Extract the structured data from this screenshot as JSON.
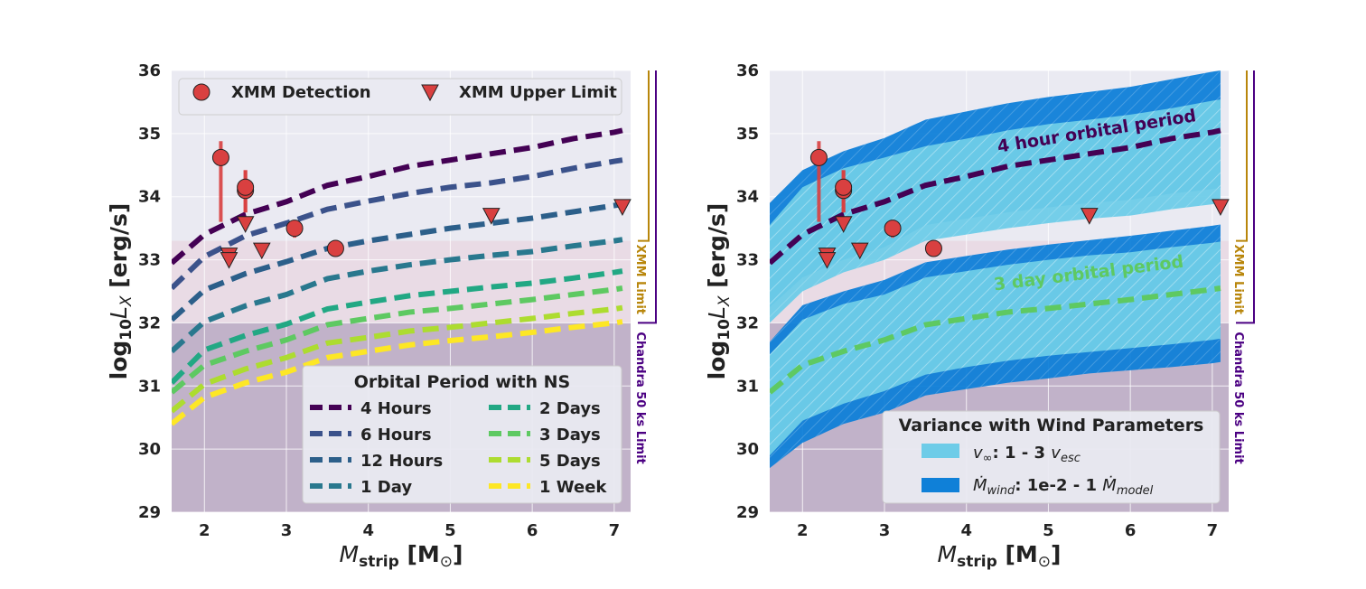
{
  "chart_data": [
    {
      "type": "line",
      "panel": "left",
      "xlabel": "M_strip [M_⊙]",
      "ylabel": "log10 L_X [erg/s]",
      "xlim": [
        1.6,
        7.2
      ],
      "ylim": [
        29,
        36
      ],
      "xticks": [
        2,
        3,
        4,
        5,
        6,
        7
      ],
      "yticks": [
        29,
        30,
        31,
        32,
        33,
        34,
        35,
        36
      ],
      "grid": true,
      "background": "#eaeaf2",
      "x": [
        1.6,
        2.0,
        2.5,
        3.0,
        3.5,
        4.0,
        4.5,
        5.0,
        5.5,
        6.0,
        6.5,
        7.0,
        7.1
      ],
      "legend_period": {
        "title": "Orbital Period with NS",
        "placement": "lower-right",
        "ncol": 2
      },
      "series": [
        {
          "name": "4 Hours",
          "color": "#440154",
          "values": [
            32.95,
            33.4,
            33.72,
            33.92,
            34.18,
            34.32,
            34.48,
            34.58,
            34.68,
            34.78,
            34.92,
            35.02,
            35.05
          ]
        },
        {
          "name": "6 Hours",
          "color": "#3b528b",
          "values": [
            32.55,
            33.05,
            33.38,
            33.58,
            33.8,
            33.93,
            34.05,
            34.15,
            34.22,
            34.32,
            34.45,
            34.56,
            34.58
          ]
        },
        {
          "name": "12 Hours",
          "color": "#2c5f8a",
          "values": [
            32.05,
            32.52,
            32.78,
            32.97,
            33.18,
            33.3,
            33.4,
            33.5,
            33.58,
            33.66,
            33.76,
            33.86,
            33.88
          ]
        },
        {
          "name": "1 Day",
          "color": "#29788e",
          "values": [
            31.55,
            32.02,
            32.27,
            32.45,
            32.7,
            32.82,
            32.92,
            33.0,
            33.07,
            33.13,
            33.22,
            33.3,
            33.32
          ]
        },
        {
          "name": "2 Days",
          "color": "#22a884",
          "values": [
            31.05,
            31.57,
            31.8,
            31.98,
            32.22,
            32.33,
            32.43,
            32.5,
            32.57,
            32.63,
            32.71,
            32.8,
            32.82
          ]
        },
        {
          "name": "3 Days",
          "color": "#5ec962",
          "values": [
            30.9,
            31.33,
            31.55,
            31.73,
            31.97,
            32.07,
            32.17,
            32.23,
            32.3,
            32.37,
            32.45,
            32.53,
            32.55
          ]
        },
        {
          "name": "5 Days",
          "color": "#addc30",
          "values": [
            30.6,
            31.03,
            31.27,
            31.45,
            31.68,
            31.77,
            31.87,
            31.93,
            32.0,
            32.07,
            32.15,
            32.22,
            32.24
          ]
        },
        {
          "name": "1 Week",
          "color": "#fde725",
          "values": [
            30.4,
            30.82,
            31.05,
            31.22,
            31.45,
            31.55,
            31.65,
            31.72,
            31.78,
            31.85,
            31.93,
            32.0,
            32.02
          ]
        }
      ],
      "markers": {
        "legend_placement": "upper-left",
        "detections": {
          "name": "XMM Detection",
          "color": "#d94040",
          "points": [
            [
              2.2,
              34.62,
              33.6,
              34.88
            ],
            [
              2.5,
              34.1,
              33.75,
              34.42
            ],
            [
              2.5,
              34.15,
              33.75,
              34.42
            ],
            [
              3.1,
              33.5,
              33.35,
              33.6
            ],
            [
              3.6,
              33.18,
              33.18,
              33.18
            ]
          ]
        },
        "upper_limits": {
          "name": "XMM Upper Limit",
          "color": "#d94040",
          "points": [
            [
              2.3,
              33.07
            ],
            [
              2.3,
              33.0
            ],
            [
              2.5,
              33.57
            ],
            [
              2.7,
              33.15
            ],
            [
              5.5,
              33.7
            ],
            [
              7.1,
              33.84
            ]
          ]
        }
      }
    },
    {
      "type": "area",
      "panel": "right",
      "xlabel": "M_strip [M_⊙]",
      "ylabel": "log10 L_X [erg/s]",
      "xlim": [
        1.6,
        7.2
      ],
      "ylim": [
        29,
        36
      ],
      "xticks": [
        2,
        3,
        4,
        5,
        6,
        7
      ],
      "yticks": [
        29,
        30,
        31,
        32,
        33,
        34,
        35,
        36
      ],
      "grid": true,
      "background": "#eaeaf2",
      "x": [
        1.6,
        2.0,
        2.5,
        3.0,
        3.5,
        4.0,
        4.5,
        5.0,
        5.5,
        6.0,
        6.5,
        7.0,
        7.1
      ],
      "legend_bands": {
        "title": "Variance with Wind Parameters",
        "placement": "lower-right"
      },
      "bands": [
        {
          "name": "Mdot_wind: 1e-2 - 1 Mdot_model",
          "color": "#0f80d8",
          "upper": [
            33.9,
            34.42,
            34.72,
            34.93,
            35.22,
            35.35,
            35.48,
            35.58,
            35.66,
            35.74,
            35.86,
            35.98,
            36.0
          ],
          "lower": [
            32.25,
            32.72,
            33.0,
            33.2,
            33.55,
            33.65,
            33.75,
            33.83,
            33.9,
            33.95,
            34.05,
            34.12,
            34.14
          ]
        },
        {
          "name": "v_inf: 1 - 3 v_esc",
          "color": "#6ecce8",
          "upper": [
            33.55,
            34.15,
            34.45,
            34.62,
            34.8,
            34.92,
            35.05,
            35.15,
            35.22,
            35.3,
            35.4,
            35.52,
            35.54
          ],
          "lower": [
            32.0,
            32.5,
            32.8,
            33.0,
            33.3,
            33.4,
            33.5,
            33.58,
            33.65,
            33.7,
            33.8,
            33.88,
            33.9
          ]
        },
        {
          "name": "Mdot_wind: 1e-2 - 1 Mdot_model",
          "color": "#0f80d8",
          "upper": [
            31.7,
            32.28,
            32.5,
            32.68,
            32.96,
            33.06,
            33.16,
            33.24,
            33.31,
            33.38,
            33.46,
            33.54,
            33.56
          ],
          "lower": [
            29.7,
            30.1,
            30.4,
            30.58,
            30.85,
            30.95,
            31.05,
            31.12,
            31.2,
            31.25,
            31.3,
            31.36,
            31.38
          ]
        },
        {
          "name": "v_inf: 1 - 3 v_esc",
          "color": "#6ecce8",
          "upper": [
            31.5,
            32.05,
            32.3,
            32.45,
            32.72,
            32.82,
            32.92,
            33.0,
            33.07,
            33.12,
            33.2,
            33.27,
            33.29
          ],
          "lower": [
            29.9,
            30.45,
            30.72,
            30.92,
            31.18,
            31.3,
            31.4,
            31.48,
            31.54,
            31.6,
            31.66,
            31.73,
            31.75
          ]
        }
      ],
      "series": [
        {
          "color": "#440154",
          "values": [
            32.95,
            33.4,
            33.72,
            33.92,
            34.18,
            34.32,
            34.48,
            34.58,
            34.68,
            34.78,
            34.92,
            35.02,
            35.05
          ]
        },
        {
          "color": "#5ec962",
          "values": [
            30.9,
            31.33,
            31.55,
            31.73,
            31.97,
            32.07,
            32.17,
            32.23,
            32.3,
            32.37,
            32.45,
            32.53,
            32.55
          ]
        }
      ],
      "annotations": [
        {
          "text": "4 hour orbital period",
          "color": "#440154",
          "x": 5.6,
          "y": 34.95,
          "angle": -9
        },
        {
          "text": "3 day orbital period",
          "color": "#5ec962",
          "x": 5.5,
          "y": 32.7,
          "angle": -7
        }
      ],
      "markers": {
        "detections": {
          "color": "#d94040",
          "points": [
            [
              2.2,
              34.62,
              33.6,
              34.88
            ],
            [
              2.5,
              34.1,
              33.75,
              34.42
            ],
            [
              2.5,
              34.15,
              33.75,
              34.42
            ],
            [
              3.1,
              33.5,
              33.35,
              33.6
            ],
            [
              3.6,
              33.18,
              33.18,
              33.18
            ]
          ]
        },
        "upper_limits": {
          "color": "#d94040",
          "points": [
            [
              2.3,
              33.07
            ],
            [
              2.3,
              33.0
            ],
            [
              2.5,
              33.57
            ],
            [
              2.7,
              33.15
            ],
            [
              5.5,
              33.7
            ],
            [
              7.1,
              33.84
            ]
          ]
        }
      }
    }
  ],
  "limits": {
    "xmm": {
      "label": "XMM Limit",
      "value": 33.3,
      "color": "#b8860b",
      "shade": "#e8d6e0"
    },
    "chandra": {
      "label": "Chandra 50 ks Limit",
      "value": 32.0,
      "color": "#4b0082",
      "shade": "#c1b2c9"
    },
    "bracket_top": 36.0
  },
  "legend_text": {
    "detection": "XMM Detection",
    "upper_limit": "XMM Upper Limit",
    "period_title": "Orbital Period with NS",
    "wind_title": "Variance with Wind Parameters",
    "v_inf_prefix": "v",
    "v_inf_sub": "∞",
    "v_inf_mid": ":  1 - 3 ",
    "v_inf_unit": "v",
    "v_inf_unit_sub": "esc",
    "mdot_prefix": "Ṁ",
    "mdot_sub": "wind",
    "mdot_mid": ":  1e-2 - 1 ",
    "mdot_unit": "Ṁ",
    "mdot_unit_sub": "model"
  },
  "axis_text": {
    "x_main": "M",
    "x_sub": "strip",
    "x_unit_open": " [M",
    "x_unit_sub": "⊙",
    "x_unit_close": "]",
    "y_prefix": "log",
    "y_sub": "10",
    "y_var": "L",
    "y_var_sub": "X",
    "y_unit": " [erg/s]"
  }
}
